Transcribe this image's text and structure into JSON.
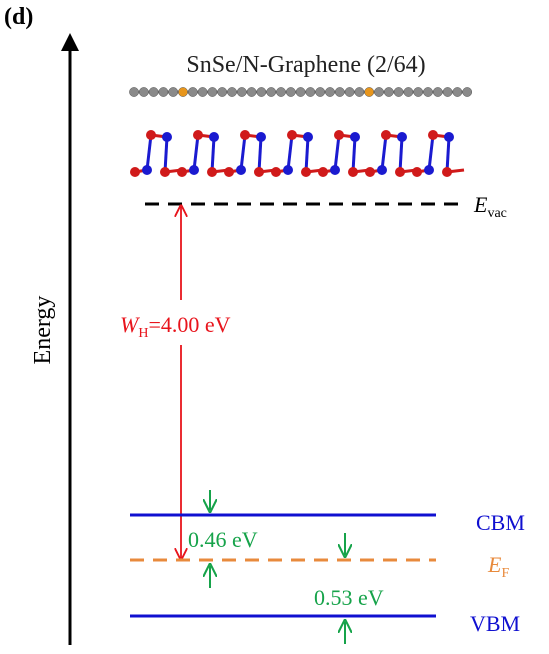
{
  "panel_label": "(d)",
  "axis_label": "Energy",
  "title": "SnSe/N-Graphene (2/64)",
  "vacuum_level": {
    "symbol": "E",
    "subscript": "vac"
  },
  "work_function": {
    "symbol": "W",
    "subscript": "H",
    "text": "=4.00 eV"
  },
  "cbm": {
    "label": "CBM"
  },
  "fermi_level": {
    "symbol": "E",
    "subscript": "F"
  },
  "vbm": {
    "label": "VBM"
  },
  "gaps": [
    {
      "text": "0.46 eV"
    },
    {
      "text": "0.53 eV"
    }
  ]
}
